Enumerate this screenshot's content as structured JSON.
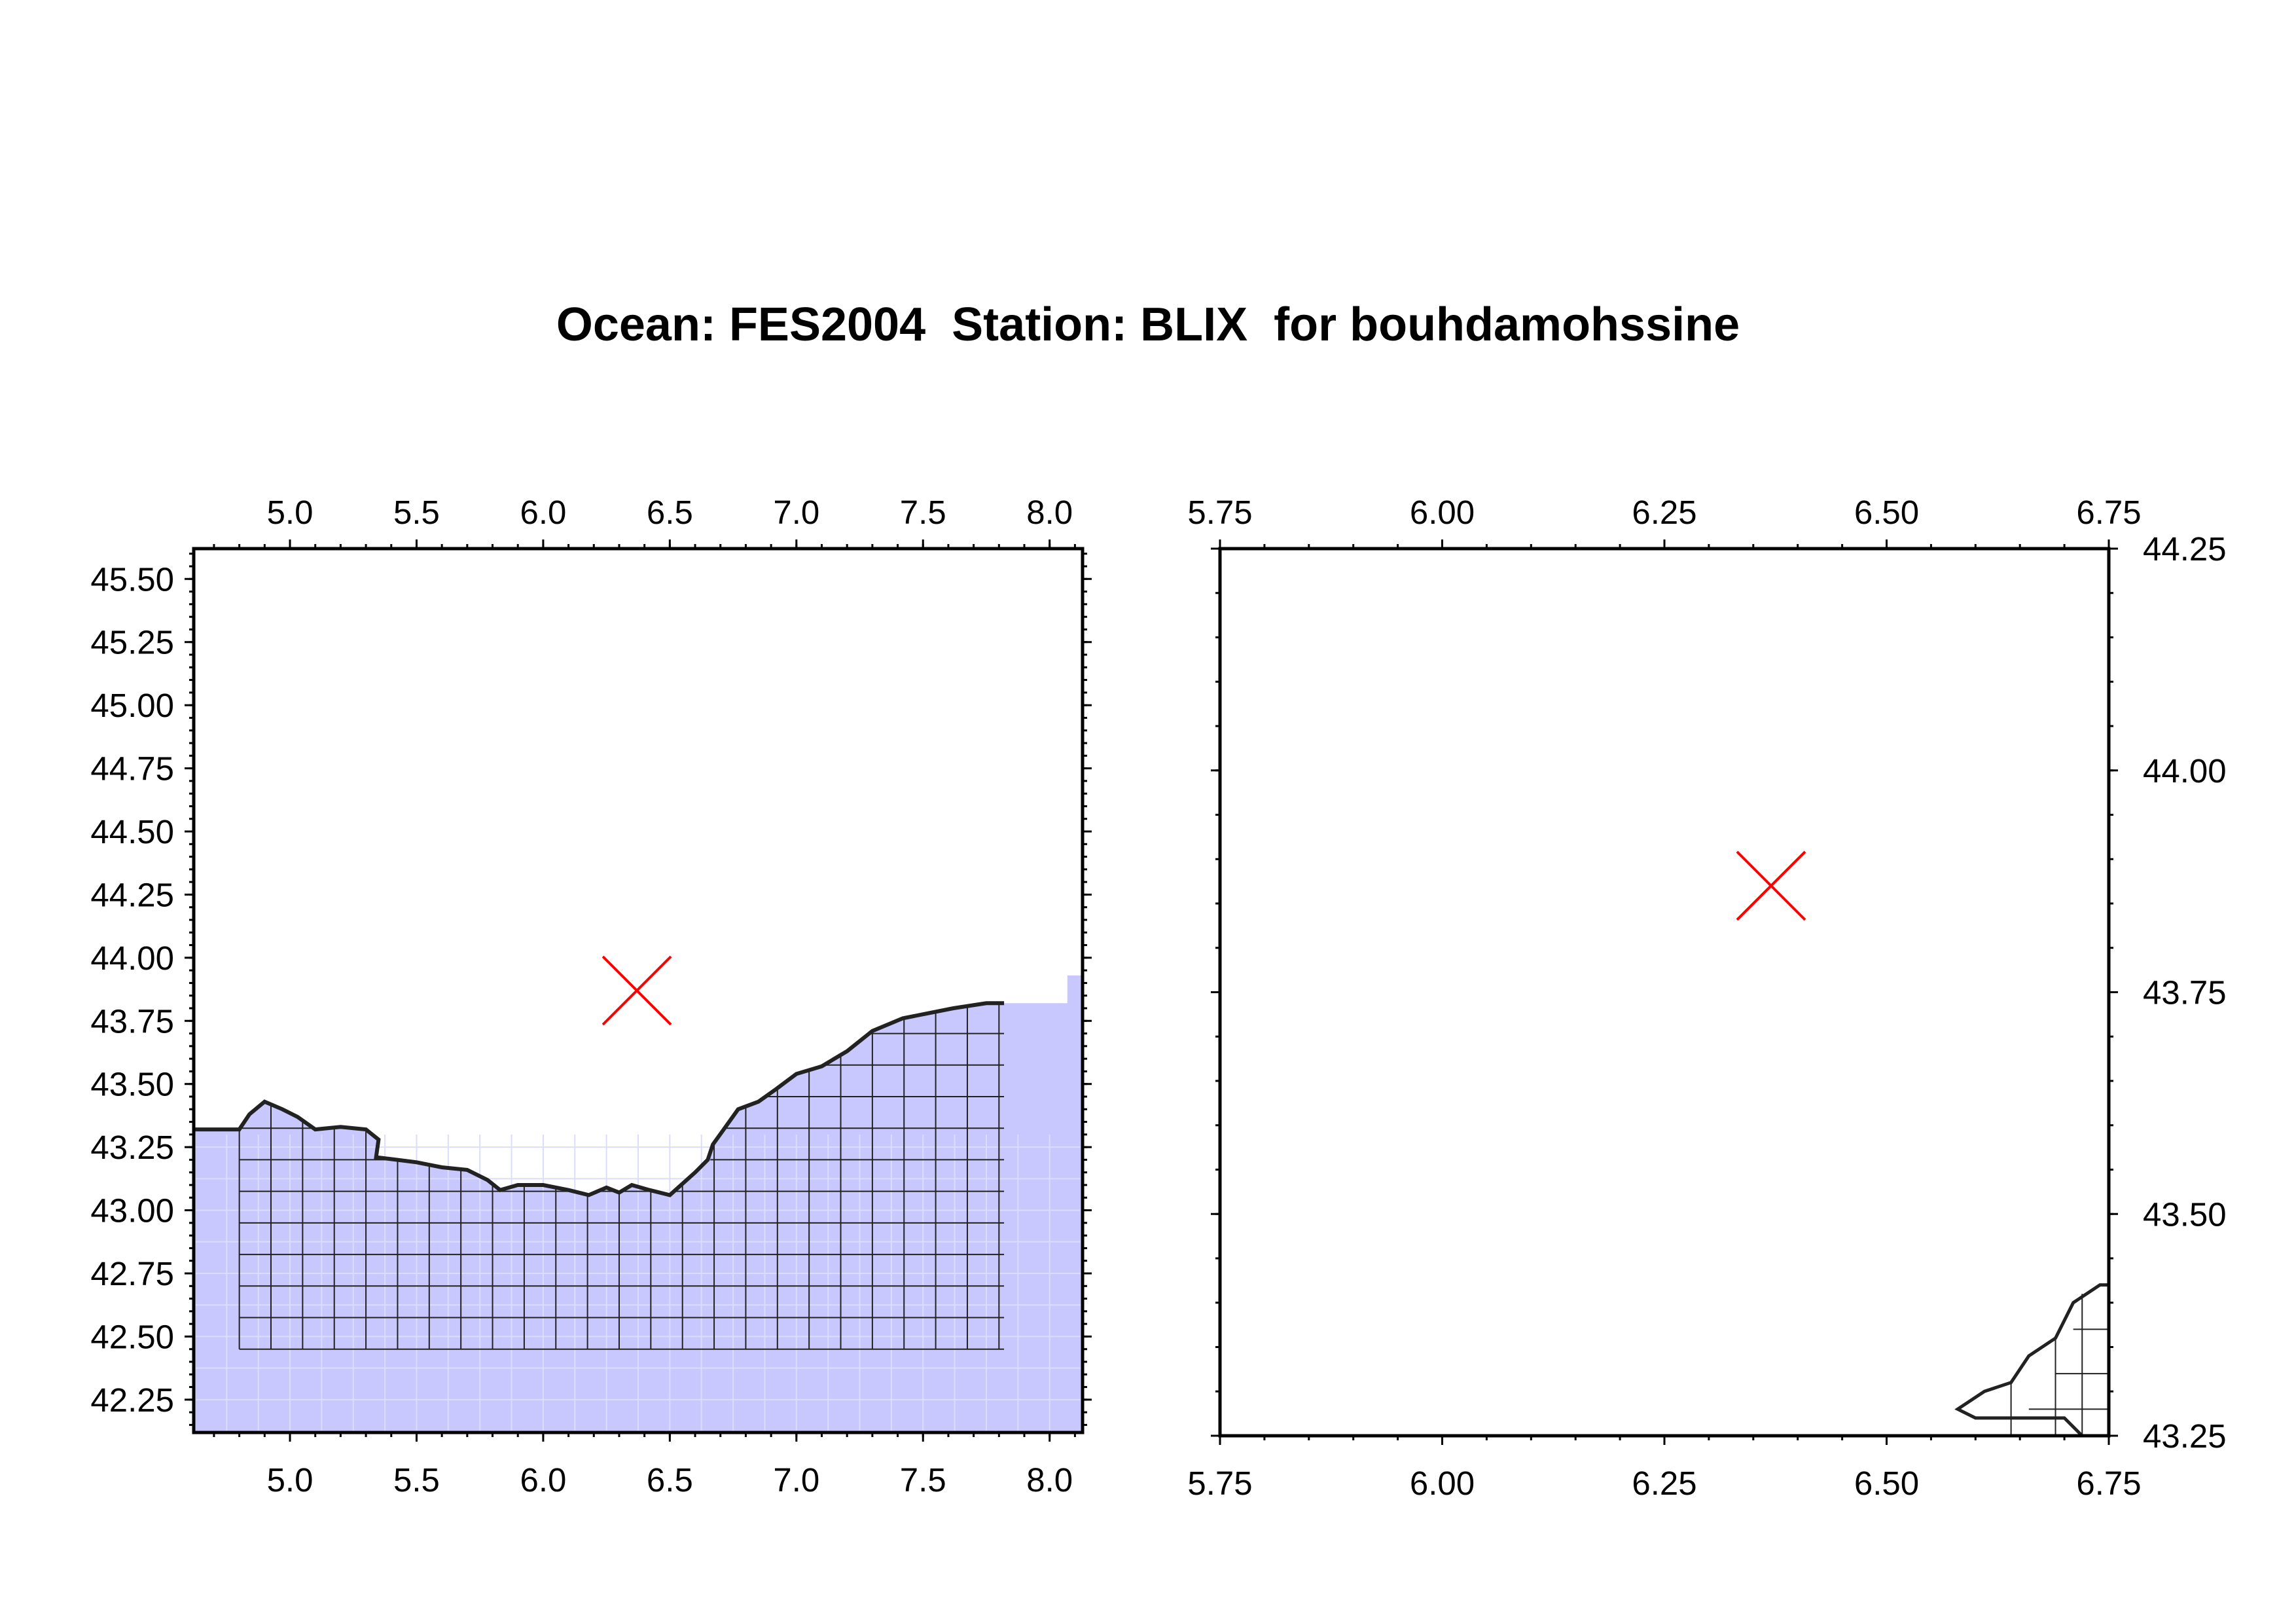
{
  "title": "Ocean: FES2004  Station: BLIX  for bouhdamohssine",
  "colors": {
    "ocean_fill": "#c8c8ff",
    "mesh_line": "#222222",
    "station_marker": "#ff0000",
    "frame": "#000000"
  },
  "station": {
    "name": "BLIX",
    "lon": 6.37,
    "lat": 43.87,
    "marker": "x-cross-icon"
  },
  "maps": [
    {
      "name": "overview-map",
      "xlim": [
        4.62,
        8.13
      ],
      "ylim": [
        42.12,
        45.62
      ],
      "x_ticks": [
        "5.0",
        "5.5",
        "6.0",
        "6.5",
        "7.0",
        "7.5",
        "8.0"
      ],
      "y_ticks": [
        "42.25",
        "42.50",
        "42.75",
        "43.00",
        "43.25",
        "43.50",
        "43.75",
        "44.00",
        "44.25",
        "44.50",
        "44.75",
        "45.00",
        "45.25",
        "45.50"
      ],
      "y_axis_side": "left",
      "shows_ocean_fill": true
    },
    {
      "name": "zoom-map",
      "xlim": [
        5.75,
        6.75
      ],
      "ylim": [
        43.25,
        44.25
      ],
      "x_ticks": [
        "5.75",
        "6.00",
        "6.25",
        "6.50",
        "6.75"
      ],
      "y_ticks": [
        "43.25",
        "43.50",
        "43.75",
        "44.00",
        "44.25"
      ],
      "y_axis_side": "right",
      "shows_ocean_fill": false
    }
  ],
  "coastline": [
    [
      4.62,
      43.32
    ],
    [
      4.8,
      43.32
    ],
    [
      4.84,
      43.38
    ],
    [
      4.9,
      43.43
    ],
    [
      4.97,
      43.4
    ],
    [
      5.03,
      43.37
    ],
    [
      5.1,
      43.32
    ],
    [
      5.2,
      43.33
    ],
    [
      5.3,
      43.32
    ],
    [
      5.35,
      43.28
    ],
    [
      5.34,
      43.21
    ],
    [
      5.42,
      43.2
    ],
    [
      5.5,
      43.19
    ],
    [
      5.6,
      43.17
    ],
    [
      5.7,
      43.16
    ],
    [
      5.78,
      43.12
    ],
    [
      5.83,
      43.08
    ],
    [
      5.9,
      43.1
    ],
    [
      6.0,
      43.1
    ],
    [
      6.1,
      43.08
    ],
    [
      6.18,
      43.06
    ],
    [
      6.25,
      43.09
    ],
    [
      6.3,
      43.07
    ],
    [
      6.35,
      43.1
    ],
    [
      6.42,
      43.08
    ],
    [
      6.5,
      43.06
    ],
    [
      6.6,
      43.15
    ],
    [
      6.65,
      43.2
    ],
    [
      6.67,
      43.26
    ],
    [
      6.72,
      43.33
    ],
    [
      6.77,
      43.4
    ],
    [
      6.85,
      43.43
    ],
    [
      6.92,
      43.48
    ],
    [
      7.0,
      43.54
    ],
    [
      7.1,
      43.57
    ],
    [
      7.2,
      43.63
    ],
    [
      7.3,
      43.71
    ],
    [
      7.42,
      43.76
    ],
    [
      7.52,
      43.78
    ],
    [
      7.62,
      43.8
    ],
    [
      7.75,
      43.82
    ],
    [
      7.82,
      43.82
    ],
    [
      7.82,
      42.45
    ],
    [
      4.8,
      42.45
    ],
    [
      4.8,
      43.32
    ]
  ]
}
